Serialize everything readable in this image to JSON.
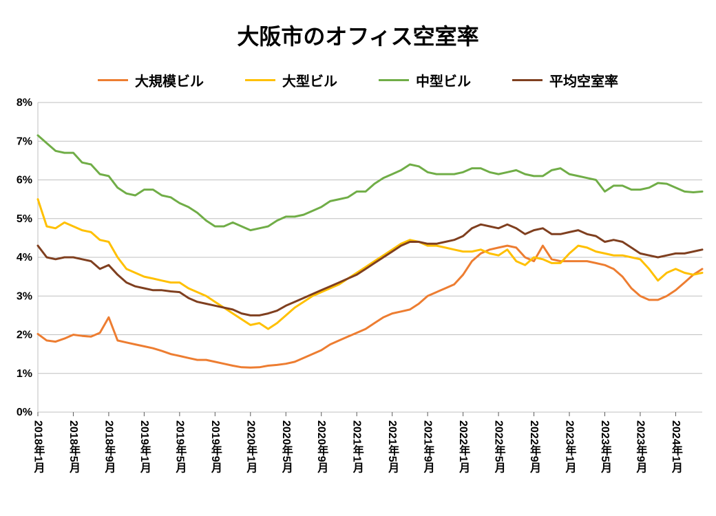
{
  "chart": {
    "type": "line",
    "title": "大阪市のオフィス空室率",
    "title_fontsize": 32,
    "title_fontweight": 900,
    "background_color": "#ffffff",
    "grid_color": "#bfbfbf",
    "axis_color": "#595959",
    "text_color": "#000000",
    "label_fontsize": 16,
    "legend_fontsize": 20,
    "legend_position": "top",
    "line_width": 3,
    "ylim": [
      0,
      8
    ],
    "ytick_step": 1,
    "ytick_labels": [
      "0%",
      "1%",
      "2%",
      "3%",
      "4%",
      "5%",
      "6%",
      "7%",
      "8%"
    ],
    "x_categories_full_count": 76,
    "x_tick_every": 4,
    "x_tick_labels": [
      "2018年1月",
      "2018年5月",
      "2018年9月",
      "2019年1月",
      "2019年5月",
      "2019年9月",
      "2020年1月",
      "2020年5月",
      "2020年9月",
      "2021年1月",
      "2021年5月",
      "2021年9月",
      "2022年1月",
      "2022年5月",
      "2022年9月",
      "2023年1月",
      "2023年5月",
      "2023年9月",
      "2024年1月"
    ],
    "series": [
      {
        "name": "大規模ビル",
        "color": "#ed7d31",
        "values": [
          2.02,
          1.85,
          1.82,
          1.9,
          2.0,
          1.97,
          1.95,
          2.05,
          2.45,
          1.85,
          1.8,
          1.75,
          1.7,
          1.65,
          1.58,
          1.5,
          1.45,
          1.4,
          1.35,
          1.35,
          1.3,
          1.25,
          1.2,
          1.16,
          1.15,
          1.16,
          1.2,
          1.22,
          1.25,
          1.3,
          1.4,
          1.5,
          1.6,
          1.75,
          1.85,
          1.95,
          2.05,
          2.15,
          2.3,
          2.45,
          2.55,
          2.6,
          2.65,
          2.8,
          3.0,
          3.1,
          3.2,
          3.3,
          3.55,
          3.9,
          4.1,
          4.2,
          4.25,
          4.3,
          4.25,
          4.0,
          3.9,
          4.3,
          3.95,
          3.9,
          3.9,
          3.9,
          3.9,
          3.85,
          3.8,
          3.7,
          3.5,
          3.2,
          3.0,
          2.9,
          2.9,
          3.0,
          3.15,
          3.35,
          3.55,
          3.7
        ]
      },
      {
        "name": "大型ビル",
        "color": "#ffc000",
        "values": [
          5.5,
          4.8,
          4.75,
          4.9,
          4.8,
          4.7,
          4.65,
          4.45,
          4.4,
          4.0,
          3.7,
          3.6,
          3.5,
          3.45,
          3.4,
          3.35,
          3.35,
          3.2,
          3.1,
          3.0,
          2.85,
          2.7,
          2.55,
          2.4,
          2.25,
          2.3,
          2.15,
          2.3,
          2.5,
          2.7,
          2.85,
          3.0,
          3.1,
          3.2,
          3.3,
          3.45,
          3.6,
          3.75,
          3.9,
          4.05,
          4.2,
          4.35,
          4.45,
          4.4,
          4.3,
          4.3,
          4.25,
          4.2,
          4.15,
          4.15,
          4.2,
          4.1,
          4.05,
          4.2,
          3.9,
          3.8,
          4.0,
          3.95,
          3.85,
          3.85,
          4.1,
          4.3,
          4.25,
          4.15,
          4.1,
          4.05,
          4.05,
          4.0,
          3.95,
          3.7,
          3.4,
          3.6,
          3.7,
          3.6,
          3.55,
          3.6
        ]
      },
      {
        "name": "中型ビル",
        "color": "#70ad47",
        "values": [
          7.15,
          6.95,
          6.75,
          6.7,
          6.7,
          6.45,
          6.4,
          6.15,
          6.1,
          5.8,
          5.65,
          5.6,
          5.75,
          5.75,
          5.6,
          5.55,
          5.4,
          5.3,
          5.15,
          4.95,
          4.8,
          4.8,
          4.9,
          4.8,
          4.7,
          4.75,
          4.8,
          4.95,
          5.05,
          5.05,
          5.1,
          5.2,
          5.3,
          5.45,
          5.5,
          5.55,
          5.7,
          5.7,
          5.9,
          6.05,
          6.15,
          6.25,
          6.4,
          6.35,
          6.2,
          6.15,
          6.15,
          6.15,
          6.2,
          6.3,
          6.3,
          6.2,
          6.15,
          6.2,
          6.25,
          6.15,
          6.1,
          6.1,
          6.25,
          6.3,
          6.15,
          6.1,
          6.05,
          6.0,
          5.7,
          5.85,
          5.85,
          5.75,
          5.75,
          5.8,
          5.92,
          5.9,
          5.8,
          5.7,
          5.68,
          5.7
        ]
      },
      {
        "name": "平均空室率",
        "color": "#7f3f1f",
        "values": [
          4.3,
          4.0,
          3.95,
          4.0,
          4.0,
          3.95,
          3.9,
          3.7,
          3.8,
          3.55,
          3.35,
          3.25,
          3.2,
          3.15,
          3.15,
          3.12,
          3.1,
          2.95,
          2.85,
          2.8,
          2.75,
          2.7,
          2.65,
          2.55,
          2.5,
          2.5,
          2.55,
          2.62,
          2.75,
          2.85,
          2.95,
          3.05,
          3.15,
          3.25,
          3.35,
          3.45,
          3.55,
          3.7,
          3.85,
          4.0,
          4.15,
          4.3,
          4.4,
          4.4,
          4.35,
          4.35,
          4.4,
          4.45,
          4.55,
          4.75,
          4.85,
          4.8,
          4.75,
          4.85,
          4.75,
          4.6,
          4.7,
          4.75,
          4.6,
          4.6,
          4.65,
          4.7,
          4.6,
          4.55,
          4.4,
          4.45,
          4.4,
          4.25,
          4.1,
          4.05,
          4.0,
          4.05,
          4.1,
          4.1,
          4.15,
          4.2
        ]
      }
    ]
  }
}
